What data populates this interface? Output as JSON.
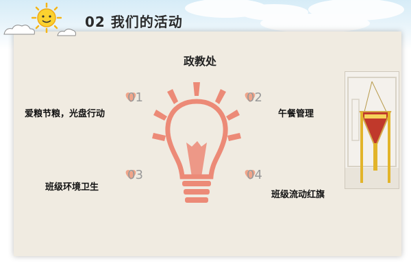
{
  "header": {
    "title": "02 我们的活动"
  },
  "center": {
    "label": "政教处"
  },
  "items": [
    {
      "num": "01",
      "label": "爱粮节粮，光盘行动"
    },
    {
      "num": "02",
      "label": "午餐管理"
    },
    {
      "num": "03",
      "label": "班级环境卫生"
    },
    {
      "num": "04",
      "label": "班级流动红旗"
    }
  ],
  "colors": {
    "accent": "#ec8a77",
    "heart": "#f0a58a",
    "number": "#999999"
  }
}
